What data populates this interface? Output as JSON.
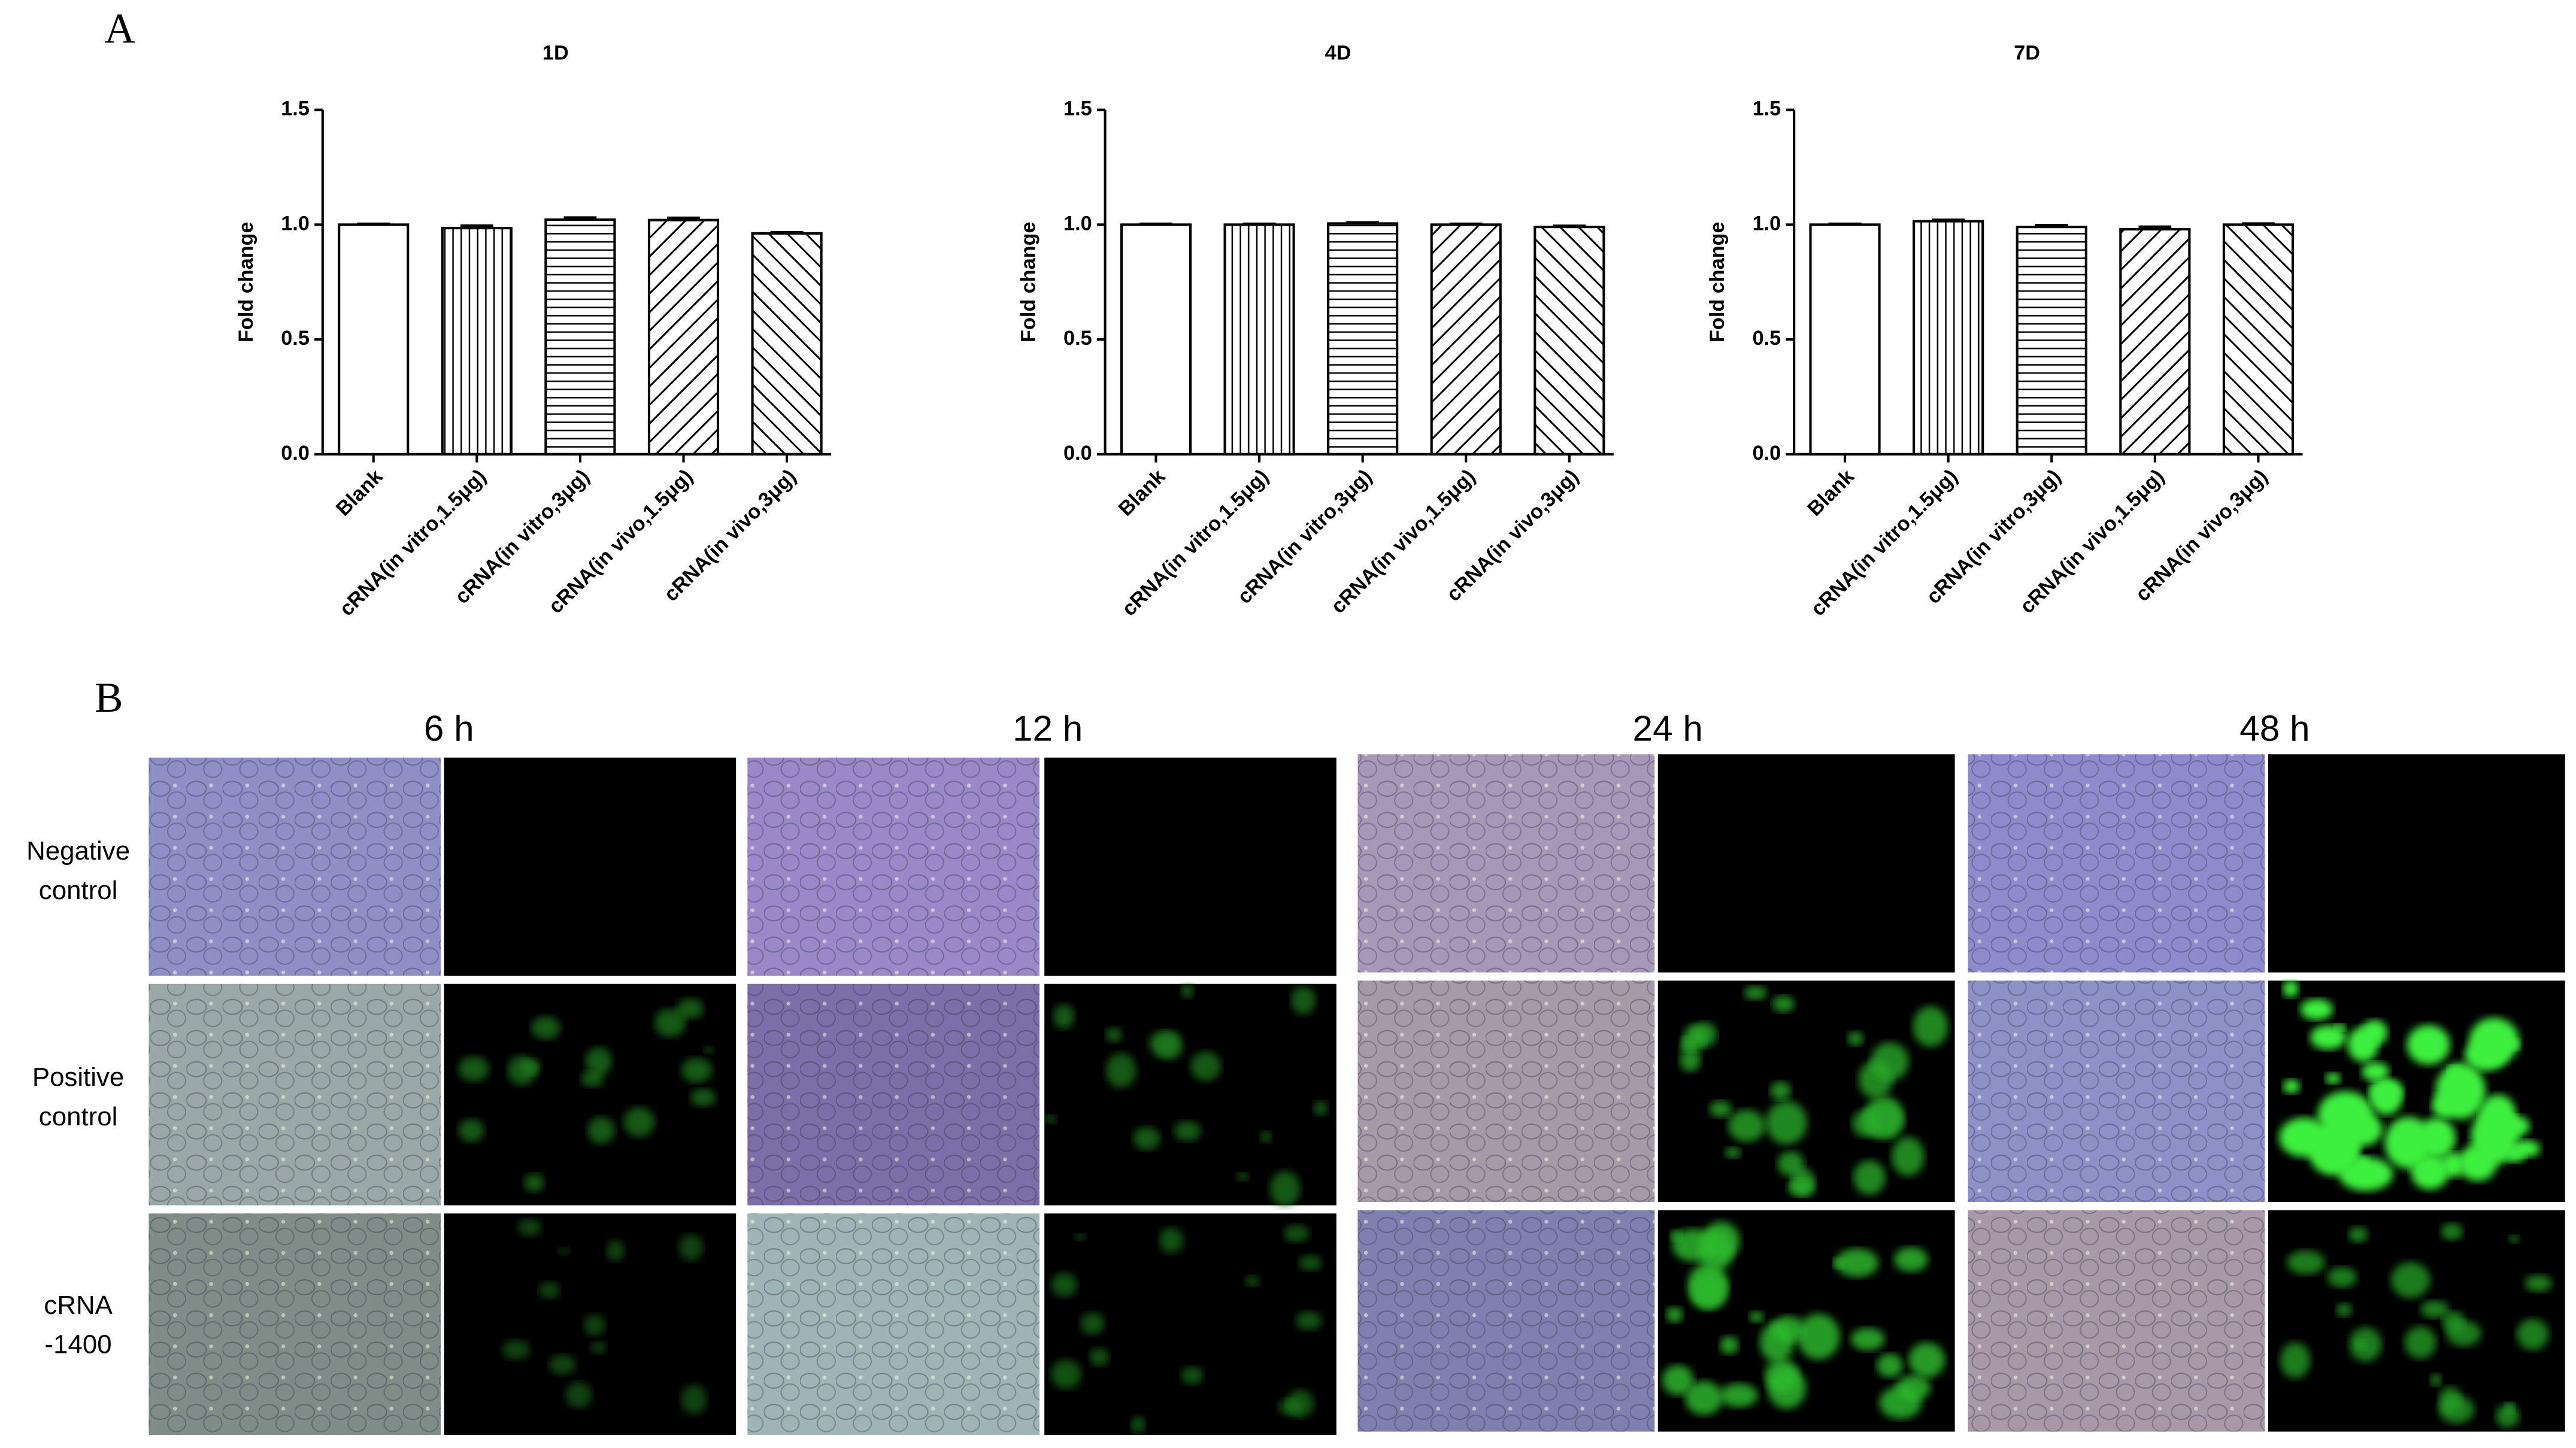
{
  "panel_labels": [
    "A",
    "B"
  ],
  "chart_data": [
    {
      "type": "bar",
      "title": "1D",
      "y_label": "Fold change",
      "categories": [
        "Blank",
        "cRNA(in vitro,1.5μg)",
        "cRNA(in vitro,3μg)",
        "cRNA(in vivo,1.5μg)",
        "cRNA(in vivo,3μg)"
      ],
      "values": [
        1.0,
        0.985,
        1.022,
        1.02,
        0.962
      ],
      "errors": [
        0.003,
        0.01,
        0.008,
        0.009,
        0.004
      ],
      "patterns": [
        "none",
        "vertical",
        "horizontal",
        "diagonal-down",
        "diagonal-up"
      ],
      "color": "#000000",
      "ylim": [
        0,
        1.5
      ],
      "yticks": [
        {
          "value": 0,
          "label": "0.0"
        },
        0.5,
        {
          "value": 1,
          "label": "1.0"
        },
        1.5
      ],
      "grid": false
    },
    {
      "type": "bar",
      "title": "4D",
      "y_label": "Fold change",
      "categories": [
        "Blank",
        "cRNA(in vitro,1.5μg)",
        "cRNA(in vitro,3μg)",
        "cRNA(in vivo,1.5μg)",
        "cRNA(in vivo,3μg)"
      ],
      "values": [
        1.0,
        1.0,
        1.005,
        1.0,
        0.99
      ],
      "errors": [
        0.003,
        0.003,
        0.004,
        0.003,
        0.004
      ],
      "patterns": [
        "none",
        "vertical",
        "horizontal",
        "diagonal-down",
        "diagonal-up"
      ],
      "color": "#000000",
      "ylim": [
        0,
        1.5
      ],
      "yticks": [
        {
          "value": 0,
          "label": "0.0"
        },
        0.5,
        {
          "value": 1,
          "label": "1.0"
        },
        1.5
      ],
      "grid": false
    },
    {
      "type": "bar",
      "title": "7D",
      "y_label": "Fold change",
      "categories": [
        "Blank",
        "cRNA(in vitro,1.5μg)",
        "cRNA(in vitro,3μg)",
        "cRNA(in vivo,1.5μg)",
        "cRNA(in vivo,3μg)"
      ],
      "values": [
        1.0,
        1.015,
        0.99,
        0.98,
        1.0
      ],
      "errors": [
        0.003,
        0.005,
        0.007,
        0.01,
        0.004
      ],
      "patterns": [
        "none",
        "vertical",
        "horizontal",
        "diagonal-down",
        "diagonal-up"
      ],
      "color": "#000000",
      "ylim": [
        0,
        1.5
      ],
      "yticks": [
        {
          "value": 0,
          "label": "0.0"
        },
        0.5,
        {
          "value": 1,
          "label": "1.0"
        },
        1.5
      ],
      "grid": false
    }
  ],
  "panel_b": {
    "times": [
      "6 h",
      "12 h",
      "24 h",
      "48 h"
    ],
    "rows": [
      [
        "Negative",
        "control"
      ],
      [
        "Positive",
        "control"
      ],
      [
        "cRNA",
        "-1400"
      ]
    ]
  }
}
